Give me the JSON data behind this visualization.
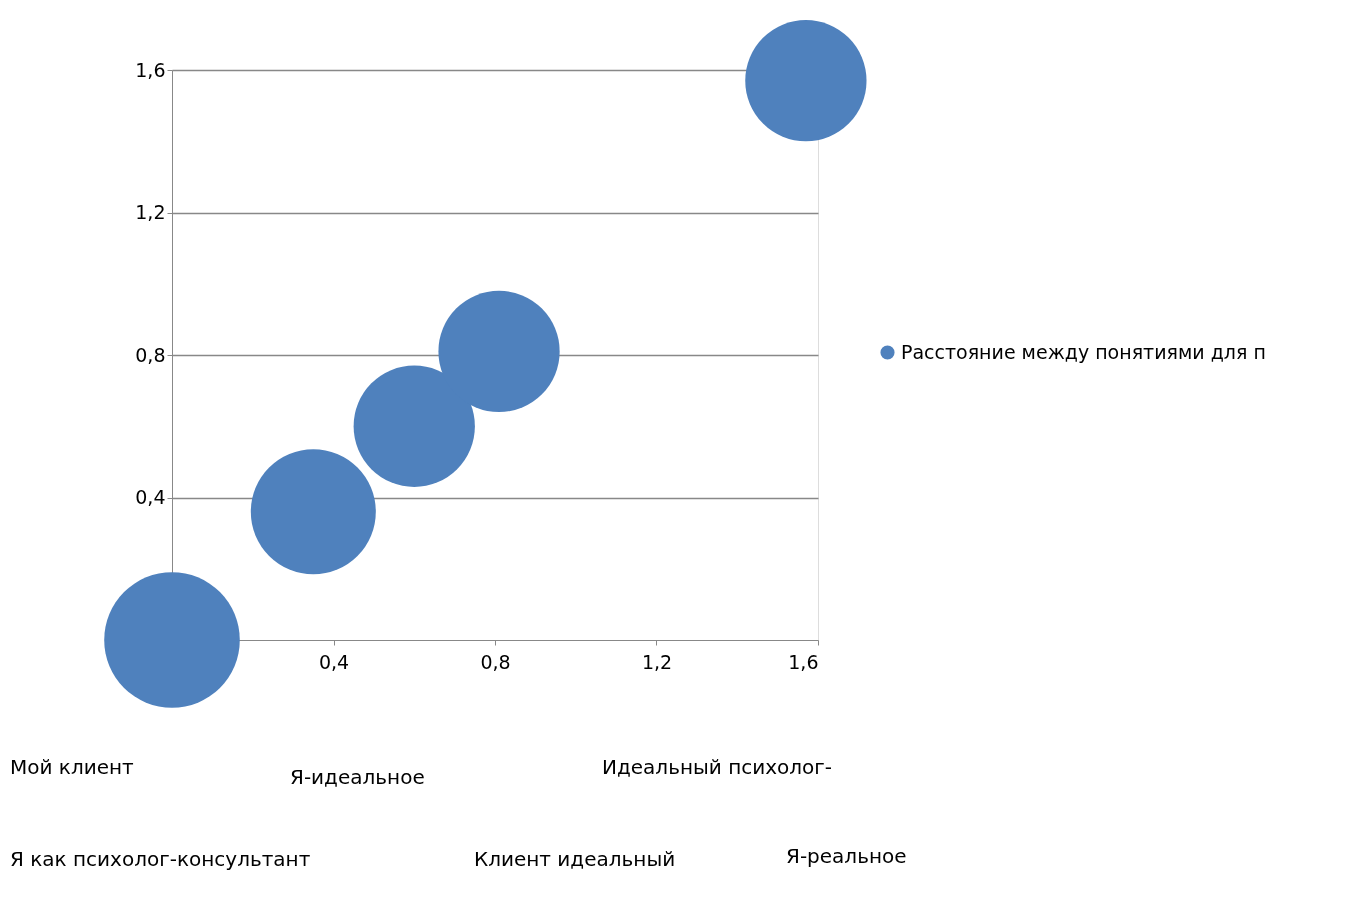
{
  "chart_data": {
    "type": "bubble",
    "x": [
      0,
      0.35,
      0.6,
      0.81,
      1.57
    ],
    "series": [
      {
        "name": "Расстояние между понятиями для п",
        "color": "#4f81bd",
        "values": [
          0,
          0.36,
          0.6,
          0.81,
          1.57
        ],
        "sizes": [
          1,
          0.85,
          0.8,
          0.8,
          0.8
        ]
      }
    ],
    "xlim": [
      0,
      1.6
    ],
    "ylim": [
      0,
      1.6
    ],
    "xticks": [
      {
        "value": 0.4,
        "label": "0,4"
      },
      {
        "value": 0.8,
        "label": "0,8"
      },
      {
        "value": 1.2,
        "label": "1,2"
      },
      {
        "value": 1.6,
        "label": "1,6"
      }
    ],
    "yticks": [
      {
        "value": 0.4,
        "label": "0,4"
      },
      {
        "value": 0.8,
        "label": "0,8"
      },
      {
        "value": 1.2,
        "label": "1,2"
      },
      {
        "value": 1.6,
        "label": "1,6"
      }
    ],
    "grid": "y",
    "legend": "right",
    "annotations": [
      "Мой клиент",
      "Я-идеальное",
      "Идеальный психолог-",
      "Я как психолог-консультант",
      "Клиент идеальный",
      "Я-реальное"
    ]
  }
}
